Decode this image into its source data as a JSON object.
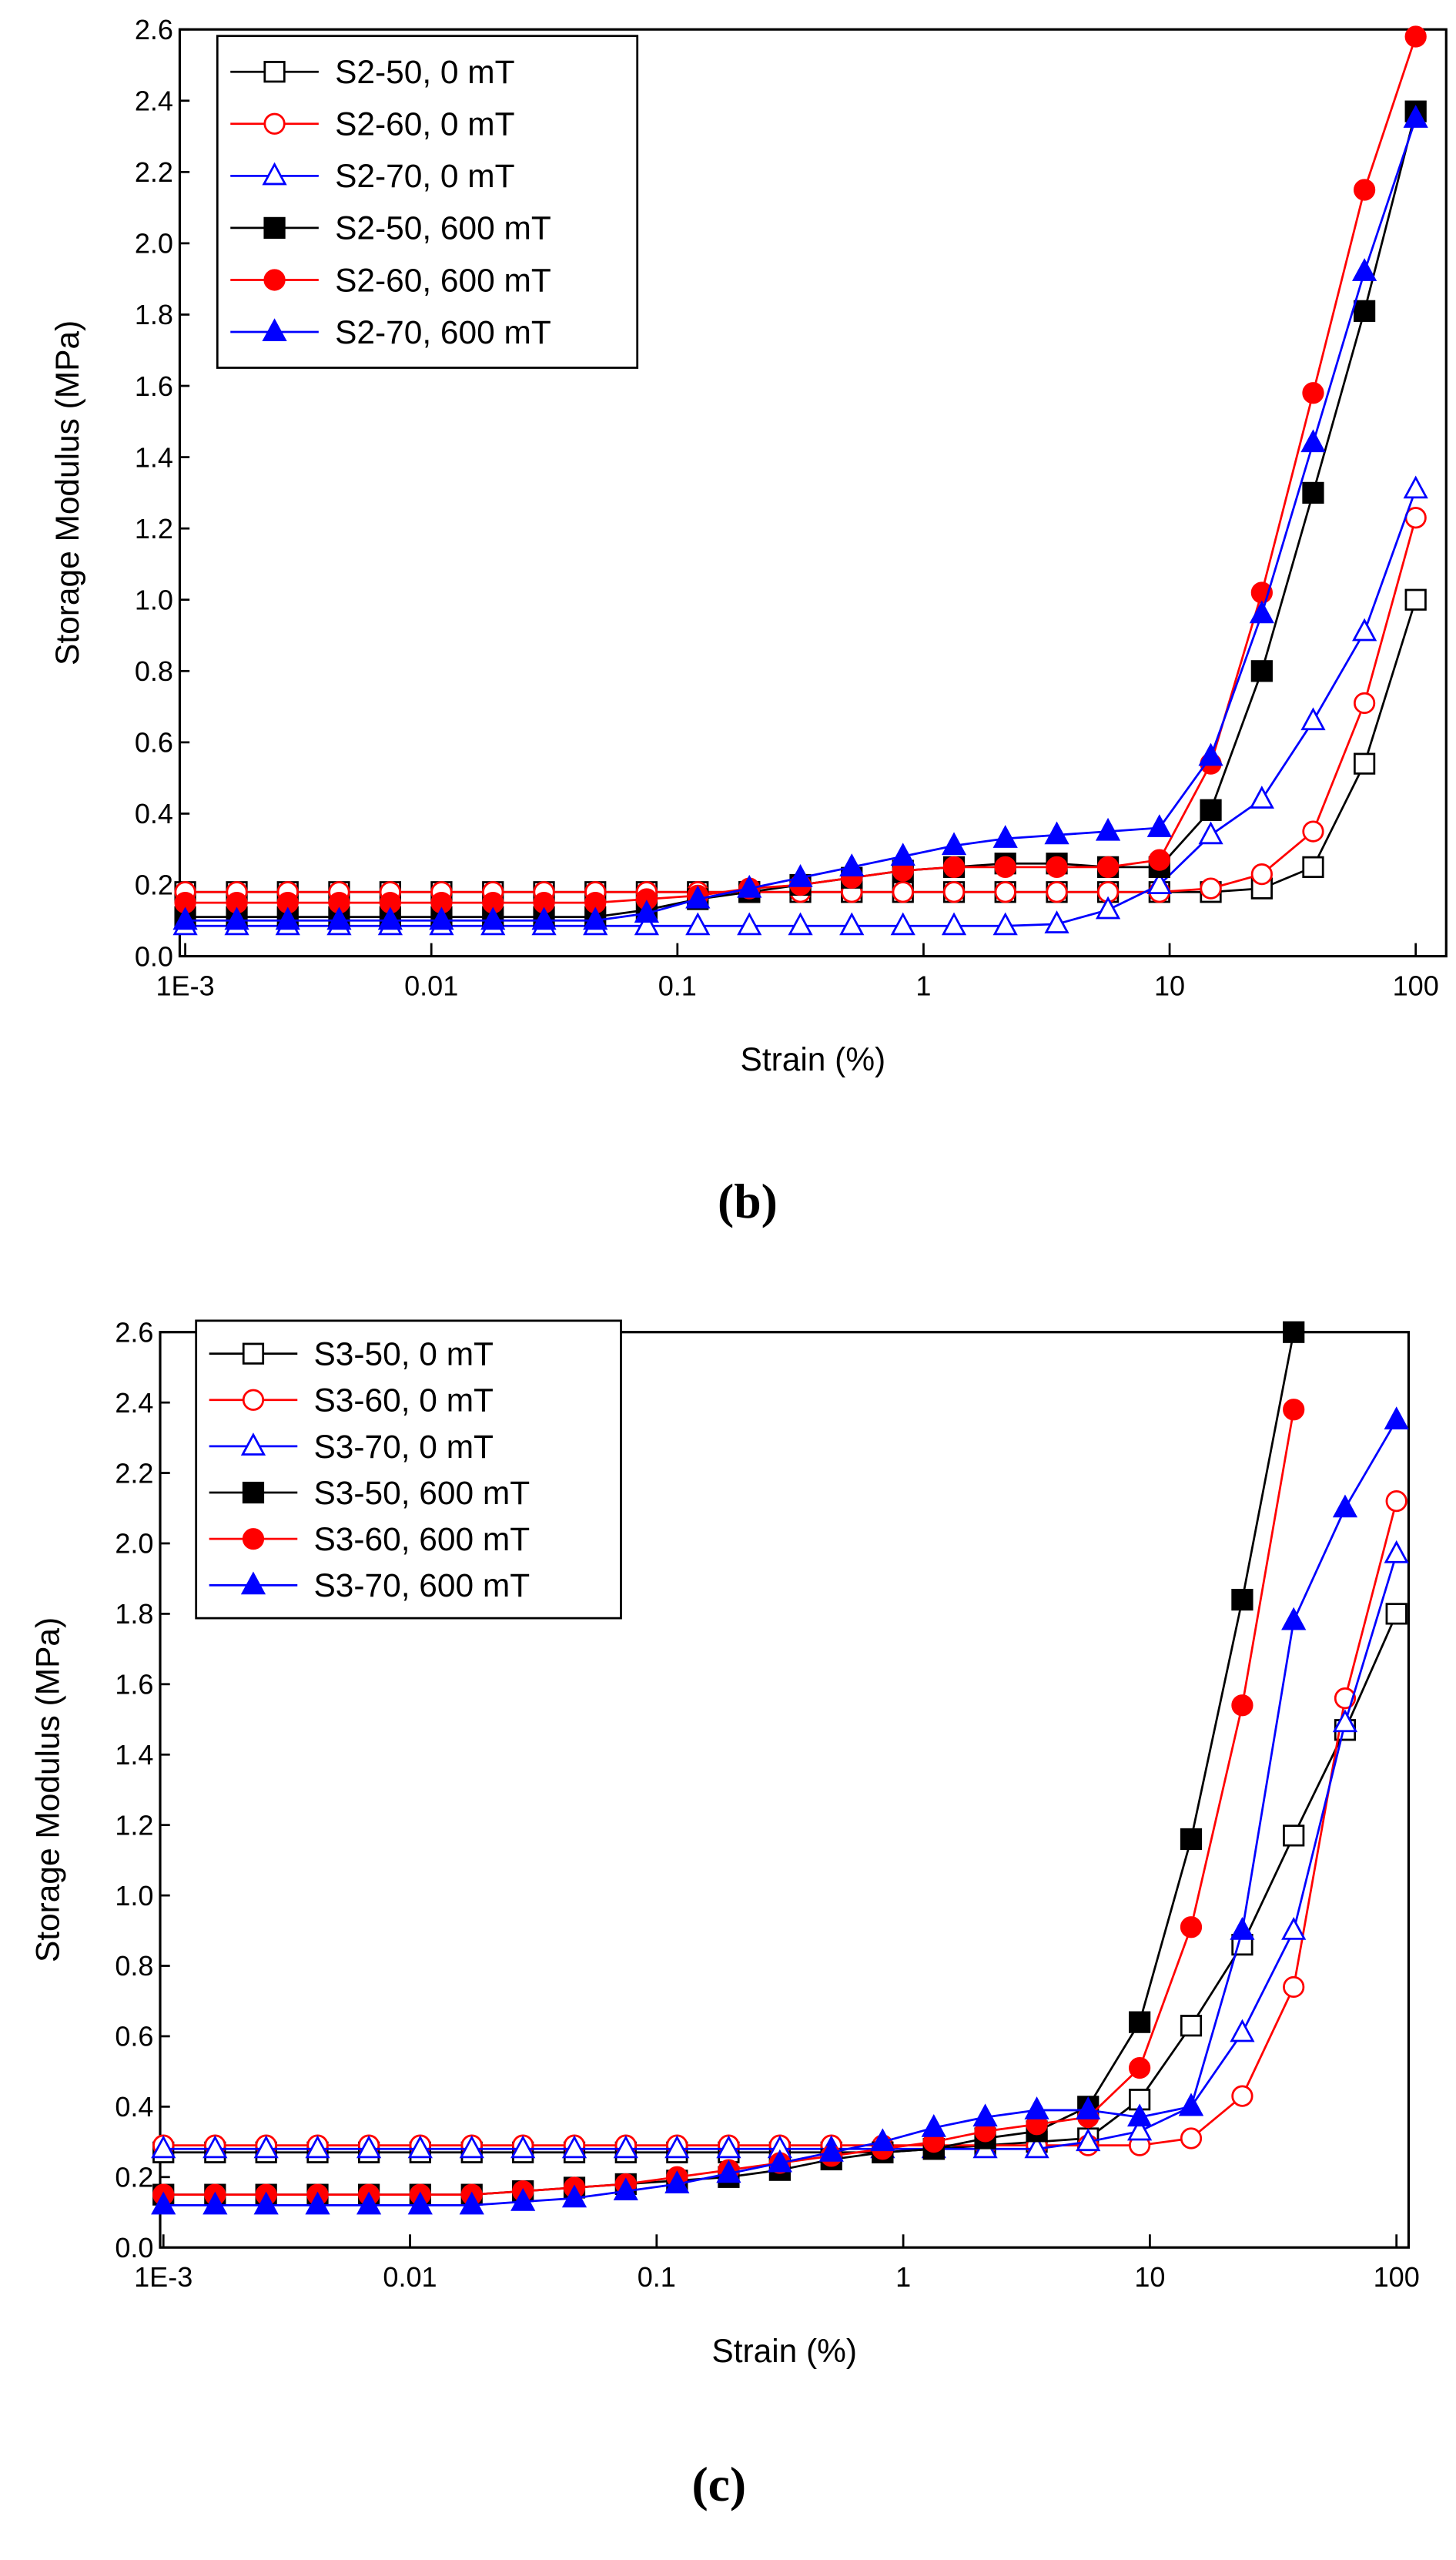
{
  "chart_data": [
    {
      "type": "line",
      "label": "(b)",
      "x_label": "Strain (%)",
      "y_label": "Storage Modulus (MPa)",
      "xscale": "log",
      "xlim": [
        0.00095,
        133
      ],
      "xticks": [
        {
          "value": 0.001,
          "label": "1E-3"
        },
        0.01,
        0.1,
        1,
        10,
        100
      ],
      "ylim": [
        0,
        2.6
      ],
      "yticks": [
        {
          "value": 0,
          "label": "0.0"
        },
        0.2,
        0.4,
        0.6,
        0.8,
        {
          "value": 1,
          "label": "1.0"
        },
        1.2,
        1.4,
        1.6,
        1.8,
        {
          "value": 2,
          "label": "2.0"
        },
        2.2,
        2.4,
        2.6
      ],
      "legend": "upper left",
      "x": [
        0.001,
        0.00162,
        0.00261,
        0.00422,
        0.00681,
        0.011,
        0.0178,
        0.0287,
        0.0464,
        0.075,
        0.121,
        0.196,
        0.316,
        0.511,
        0.825,
        1.33,
        2.15,
        3.48,
        5.62,
        9.09,
        14.7,
        23.7,
        38.3,
        61.9,
        100
      ],
      "series": [
        {
          "name": "S2-50, 0 mT",
          "color": "#000000",
          "marker": "square",
          "filled": false,
          "values": [
            0.18,
            0.18,
            0.18,
            0.18,
            0.18,
            0.18,
            0.18,
            0.18,
            0.18,
            0.18,
            0.18,
            0.18,
            0.18,
            0.18,
            0.18,
            0.18,
            0.18,
            0.18,
            0.18,
            0.18,
            0.18,
            0.19,
            0.25,
            0.54,
            1.0
          ]
        },
        {
          "name": "S2-60, 0 mT",
          "color": "#ff0000",
          "marker": "circle",
          "filled": false,
          "values": [
            0.18,
            0.18,
            0.18,
            0.18,
            0.18,
            0.18,
            0.18,
            0.18,
            0.18,
            0.18,
            0.18,
            0.18,
            0.18,
            0.18,
            0.18,
            0.18,
            0.18,
            0.18,
            0.18,
            0.18,
            0.19,
            0.23,
            0.35,
            0.71,
            1.23
          ]
        },
        {
          "name": "S2-70, 0 mT",
          "color": "#0000ff",
          "marker": "triangle",
          "filled": false,
          "values": [
            0.085,
            0.085,
            0.085,
            0.085,
            0.085,
            0.085,
            0.085,
            0.085,
            0.085,
            0.085,
            0.085,
            0.085,
            0.085,
            0.085,
            0.085,
            0.085,
            0.085,
            0.09,
            0.13,
            0.2,
            0.34,
            0.44,
            0.66,
            0.91,
            1.31
          ]
        },
        {
          "name": "S2-50, 600 mT",
          "color": "#000000",
          "marker": "square",
          "filled": true,
          "values": [
            0.11,
            0.11,
            0.11,
            0.11,
            0.11,
            0.11,
            0.11,
            0.11,
            0.11,
            0.13,
            0.16,
            0.18,
            0.2,
            0.22,
            0.24,
            0.25,
            0.26,
            0.26,
            0.25,
            0.25,
            0.41,
            0.8,
            1.3,
            1.81,
            2.37
          ]
        },
        {
          "name": "S2-60, 600 mT",
          "color": "#ff0000",
          "marker": "circle",
          "filled": true,
          "values": [
            0.15,
            0.15,
            0.15,
            0.15,
            0.15,
            0.15,
            0.15,
            0.15,
            0.15,
            0.16,
            0.17,
            0.19,
            0.2,
            0.22,
            0.24,
            0.25,
            0.25,
            0.25,
            0.25,
            0.27,
            0.54,
            1.02,
            1.58,
            2.15,
            2.58
          ]
        },
        {
          "name": "S2-70, 600 mT",
          "color": "#0000ff",
          "marker": "triangle",
          "filled": true,
          "values": [
            0.1,
            0.1,
            0.1,
            0.1,
            0.1,
            0.1,
            0.1,
            0.1,
            0.1,
            0.12,
            0.16,
            0.19,
            0.22,
            0.25,
            0.28,
            0.31,
            0.33,
            0.34,
            0.35,
            0.36,
            0.56,
            0.96,
            1.44,
            1.92,
            2.35
          ]
        }
      ]
    },
    {
      "type": "line",
      "label": "(c)",
      "x_label": "Strain (%)",
      "y_label": "Storage Modulus (MPa)",
      "xscale": "log",
      "xlim": [
        0.00097,
        112
      ],
      "xticks": [
        {
          "value": 0.001,
          "label": "1E-3"
        },
        0.01,
        0.1,
        1,
        10,
        100
      ],
      "ylim": [
        0,
        2.6
      ],
      "yticks": [
        {
          "value": 0,
          "label": "0.0"
        },
        0.2,
        0.4,
        0.6,
        0.8,
        {
          "value": 1,
          "label": "1.0"
        },
        1.2,
        1.4,
        1.6,
        1.8,
        {
          "value": 2,
          "label": "2.0"
        },
        2.2,
        2.4,
        2.6
      ],
      "legend": "upper left",
      "x": [
        0.001,
        0.00162,
        0.00261,
        0.00422,
        0.00681,
        0.011,
        0.0178,
        0.0287,
        0.0464,
        0.075,
        0.121,
        0.196,
        0.316,
        0.511,
        0.825,
        1.33,
        2.15,
        3.48,
        5.62,
        9.09,
        14.7,
        23.7,
        38.3,
        61.9,
        100
      ],
      "series": [
        {
          "name": "S3-50, 0 mT",
          "color": "#000000",
          "marker": "square",
          "filled": false,
          "values": [
            0.27,
            0.27,
            0.27,
            0.27,
            0.27,
            0.27,
            0.27,
            0.27,
            0.27,
            0.27,
            0.27,
            0.27,
            0.27,
            0.27,
            0.27,
            0.28,
            0.29,
            0.3,
            0.31,
            0.42,
            0.63,
            0.86,
            1.17,
            1.47,
            1.8
          ]
        },
        {
          "name": "S3-60, 0 mT",
          "color": "#ff0000",
          "marker": "circle",
          "filled": false,
          "values": [
            0.29,
            0.29,
            0.29,
            0.29,
            0.29,
            0.29,
            0.29,
            0.29,
            0.29,
            0.29,
            0.29,
            0.29,
            0.29,
            0.29,
            0.29,
            0.29,
            0.29,
            0.29,
            0.29,
            0.29,
            0.31,
            0.43,
            0.74,
            1.56,
            2.12
          ]
        },
        {
          "name": "S3-70, 0 mT",
          "color": "#0000ff",
          "marker": "triangle",
          "filled": false,
          "values": [
            0.28,
            0.28,
            0.28,
            0.28,
            0.28,
            0.28,
            0.28,
            0.28,
            0.28,
            0.28,
            0.28,
            0.28,
            0.28,
            0.28,
            0.28,
            0.28,
            0.28,
            0.28,
            0.3,
            0.33,
            0.4,
            0.61,
            0.9,
            1.49,
            1.97
          ]
        },
        {
          "name": "S3-50, 600 mT",
          "color": "#000000",
          "marker": "square",
          "filled": true,
          "values": [
            0.15,
            0.15,
            0.15,
            0.15,
            0.15,
            0.15,
            0.15,
            0.16,
            0.17,
            0.18,
            0.19,
            0.2,
            0.22,
            0.25,
            0.27,
            0.28,
            0.31,
            0.33,
            0.4,
            0.64,
            1.16,
            1.84,
            2.6,
            null,
            null
          ]
        },
        {
          "name": "S3-60, 600 mT",
          "color": "#ff0000",
          "marker": "circle",
          "filled": true,
          "values": [
            0.15,
            0.15,
            0.15,
            0.15,
            0.15,
            0.15,
            0.15,
            0.16,
            0.17,
            0.18,
            0.2,
            0.22,
            0.24,
            0.26,
            0.28,
            0.3,
            0.33,
            0.35,
            0.37,
            0.51,
            0.91,
            1.54,
            2.38,
            null,
            null
          ]
        },
        {
          "name": "S3-70, 600 mT",
          "color": "#0000ff",
          "marker": "triangle",
          "filled": true,
          "values": [
            0.12,
            0.12,
            0.12,
            0.12,
            0.12,
            0.12,
            0.12,
            0.13,
            0.14,
            0.16,
            0.18,
            0.21,
            0.24,
            0.27,
            0.3,
            0.34,
            0.37,
            0.39,
            0.39,
            0.37,
            0.4,
            0.9,
            1.78,
            2.1,
            2.35
          ]
        }
      ]
    }
  ]
}
